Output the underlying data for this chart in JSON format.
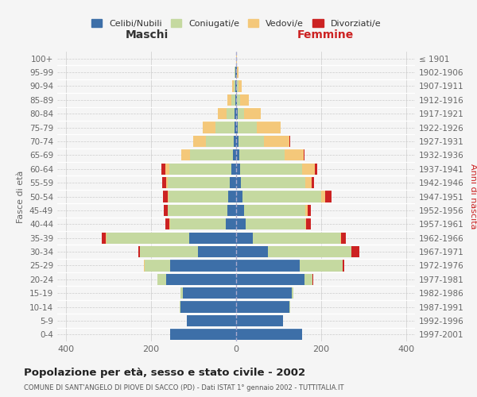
{
  "age_groups": [
    "0-4",
    "5-9",
    "10-14",
    "15-19",
    "20-24",
    "25-29",
    "30-34",
    "35-39",
    "40-44",
    "45-49",
    "50-54",
    "55-59",
    "60-64",
    "65-69",
    "70-74",
    "75-79",
    "80-84",
    "85-89",
    "90-94",
    "95-99",
    "100+"
  ],
  "birth_years": [
    "1997-2001",
    "1992-1996",
    "1987-1991",
    "1982-1986",
    "1977-1981",
    "1972-1976",
    "1967-1971",
    "1962-1966",
    "1957-1961",
    "1952-1956",
    "1947-1951",
    "1942-1946",
    "1937-1941",
    "1932-1936",
    "1927-1931",
    "1922-1926",
    "1917-1921",
    "1912-1916",
    "1907-1911",
    "1902-1906",
    "≤ 1901"
  ],
  "male_celibi": [
    155,
    115,
    130,
    125,
    165,
    155,
    90,
    110,
    25,
    20,
    18,
    15,
    12,
    8,
    6,
    4,
    3,
    2,
    1,
    1,
    0
  ],
  "male_coniugati": [
    0,
    1,
    2,
    5,
    20,
    60,
    135,
    195,
    130,
    140,
    140,
    145,
    145,
    100,
    65,
    45,
    20,
    10,
    5,
    2,
    0
  ],
  "male_vedovi": [
    0,
    0,
    0,
    0,
    0,
    1,
    0,
    1,
    1,
    1,
    2,
    5,
    10,
    20,
    30,
    30,
    20,
    8,
    3,
    1,
    0
  ],
  "male_divorziati": [
    0,
    0,
    0,
    0,
    0,
    1,
    5,
    10,
    10,
    8,
    12,
    8,
    8,
    1,
    0,
    0,
    0,
    0,
    0,
    0,
    0
  ],
  "female_celibi": [
    155,
    110,
    125,
    130,
    160,
    150,
    75,
    40,
    22,
    18,
    14,
    12,
    10,
    8,
    5,
    4,
    3,
    2,
    1,
    1,
    0
  ],
  "female_coniugati": [
    0,
    1,
    2,
    5,
    20,
    100,
    195,
    205,
    140,
    145,
    185,
    150,
    145,
    105,
    60,
    45,
    15,
    8,
    4,
    1,
    0
  ],
  "female_vedovi": [
    0,
    0,
    0,
    0,
    0,
    1,
    1,
    2,
    3,
    5,
    10,
    15,
    30,
    45,
    60,
    55,
    40,
    20,
    8,
    3,
    1
  ],
  "female_divorziati": [
    0,
    0,
    0,
    0,
    1,
    2,
    18,
    10,
    10,
    8,
    15,
    5,
    5,
    2,
    2,
    1,
    0,
    0,
    0,
    0,
    0
  ],
  "colors": {
    "celibi": "#3d6fa8",
    "coniugati": "#c5d9a0",
    "vedovi": "#f4c87a",
    "divorziati": "#cc2222"
  },
  "title": "Popolazione per età, sesso e stato civile - 2002",
  "subtitle": "COMUNE DI SANT'ANGELO DI PIOVE DI SACCO (PD) - Dati ISTAT 1° gennaio 2002 - TUTTITALIA.IT",
  "xlabel_left": "Maschi",
  "xlabel_right": "Femmine",
  "ylabel_left": "Fasce di età",
  "ylabel_right": "Anni di nascita",
  "xlim": 420,
  "background_color": "#f5f5f5",
  "grid_color": "#cccccc"
}
